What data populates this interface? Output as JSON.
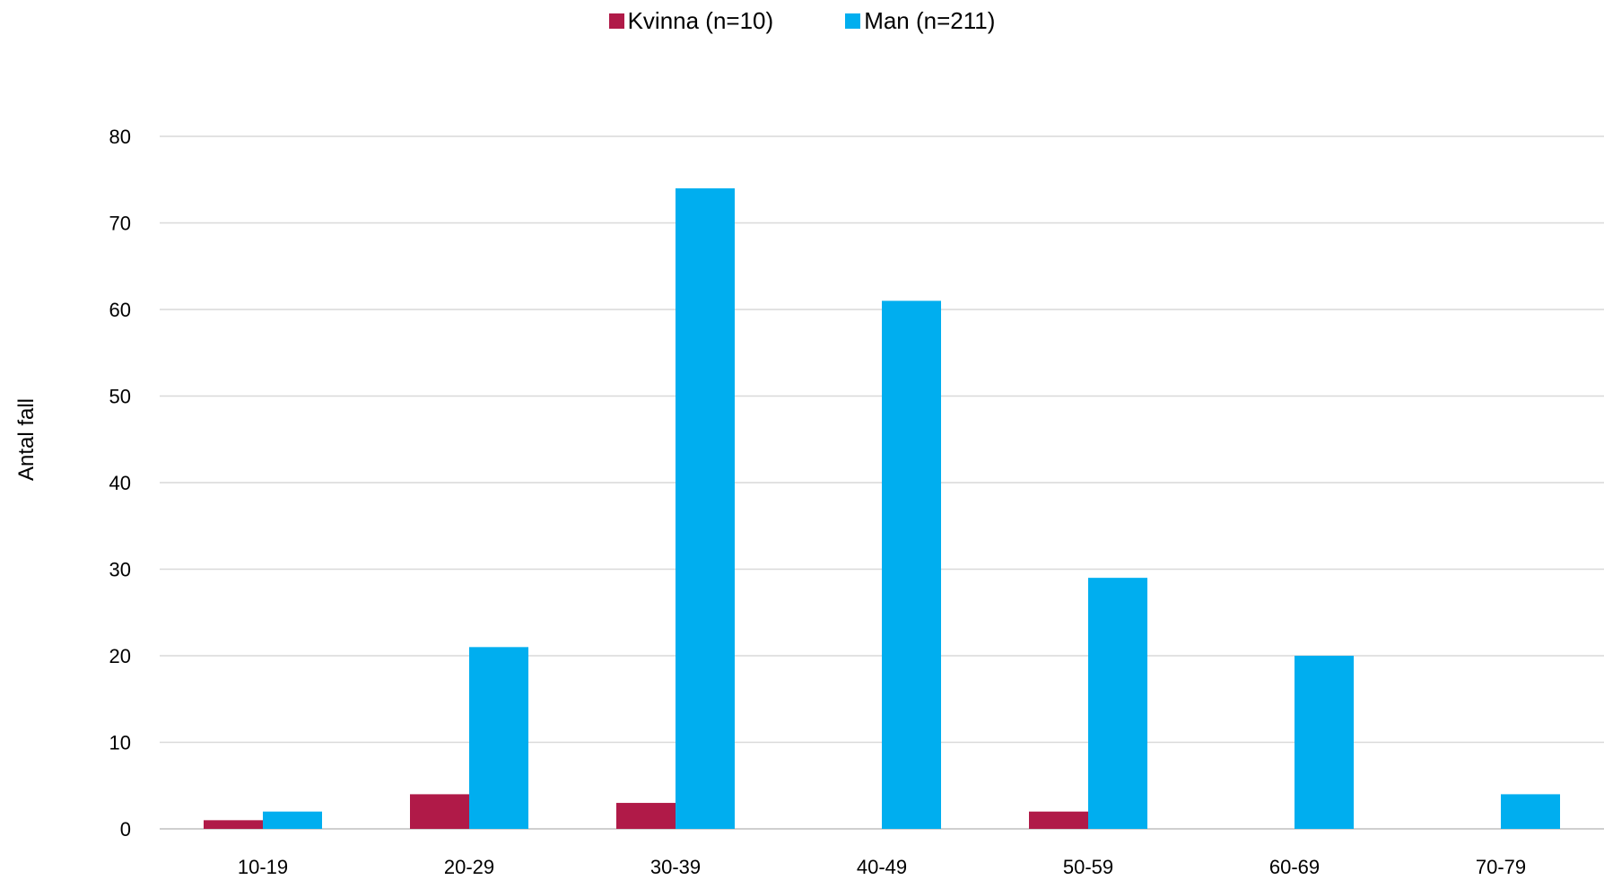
{
  "chart_data": {
    "type": "bar",
    "categories": [
      "10-19",
      "20-29",
      "30-39",
      "40-49",
      "50-59",
      "60-69",
      "70-79"
    ],
    "series": [
      {
        "name": "Kvinna (n=10)",
        "color": "#B01A48",
        "values": [
          1,
          4,
          3,
          0,
          2,
          0,
          0
        ]
      },
      {
        "name": "Man (n=211)",
        "color": "#00AEEF",
        "values": [
          2,
          21,
          74,
          61,
          29,
          20,
          4
        ]
      }
    ],
    "title": "",
    "xlabel": "",
    "ylabel": "Antal fall",
    "ylim": [
      0,
      80
    ],
    "yticks": [
      0,
      10,
      20,
      30,
      40,
      50,
      60,
      70,
      80
    ],
    "grid": true,
    "legend_position": "top-center"
  }
}
